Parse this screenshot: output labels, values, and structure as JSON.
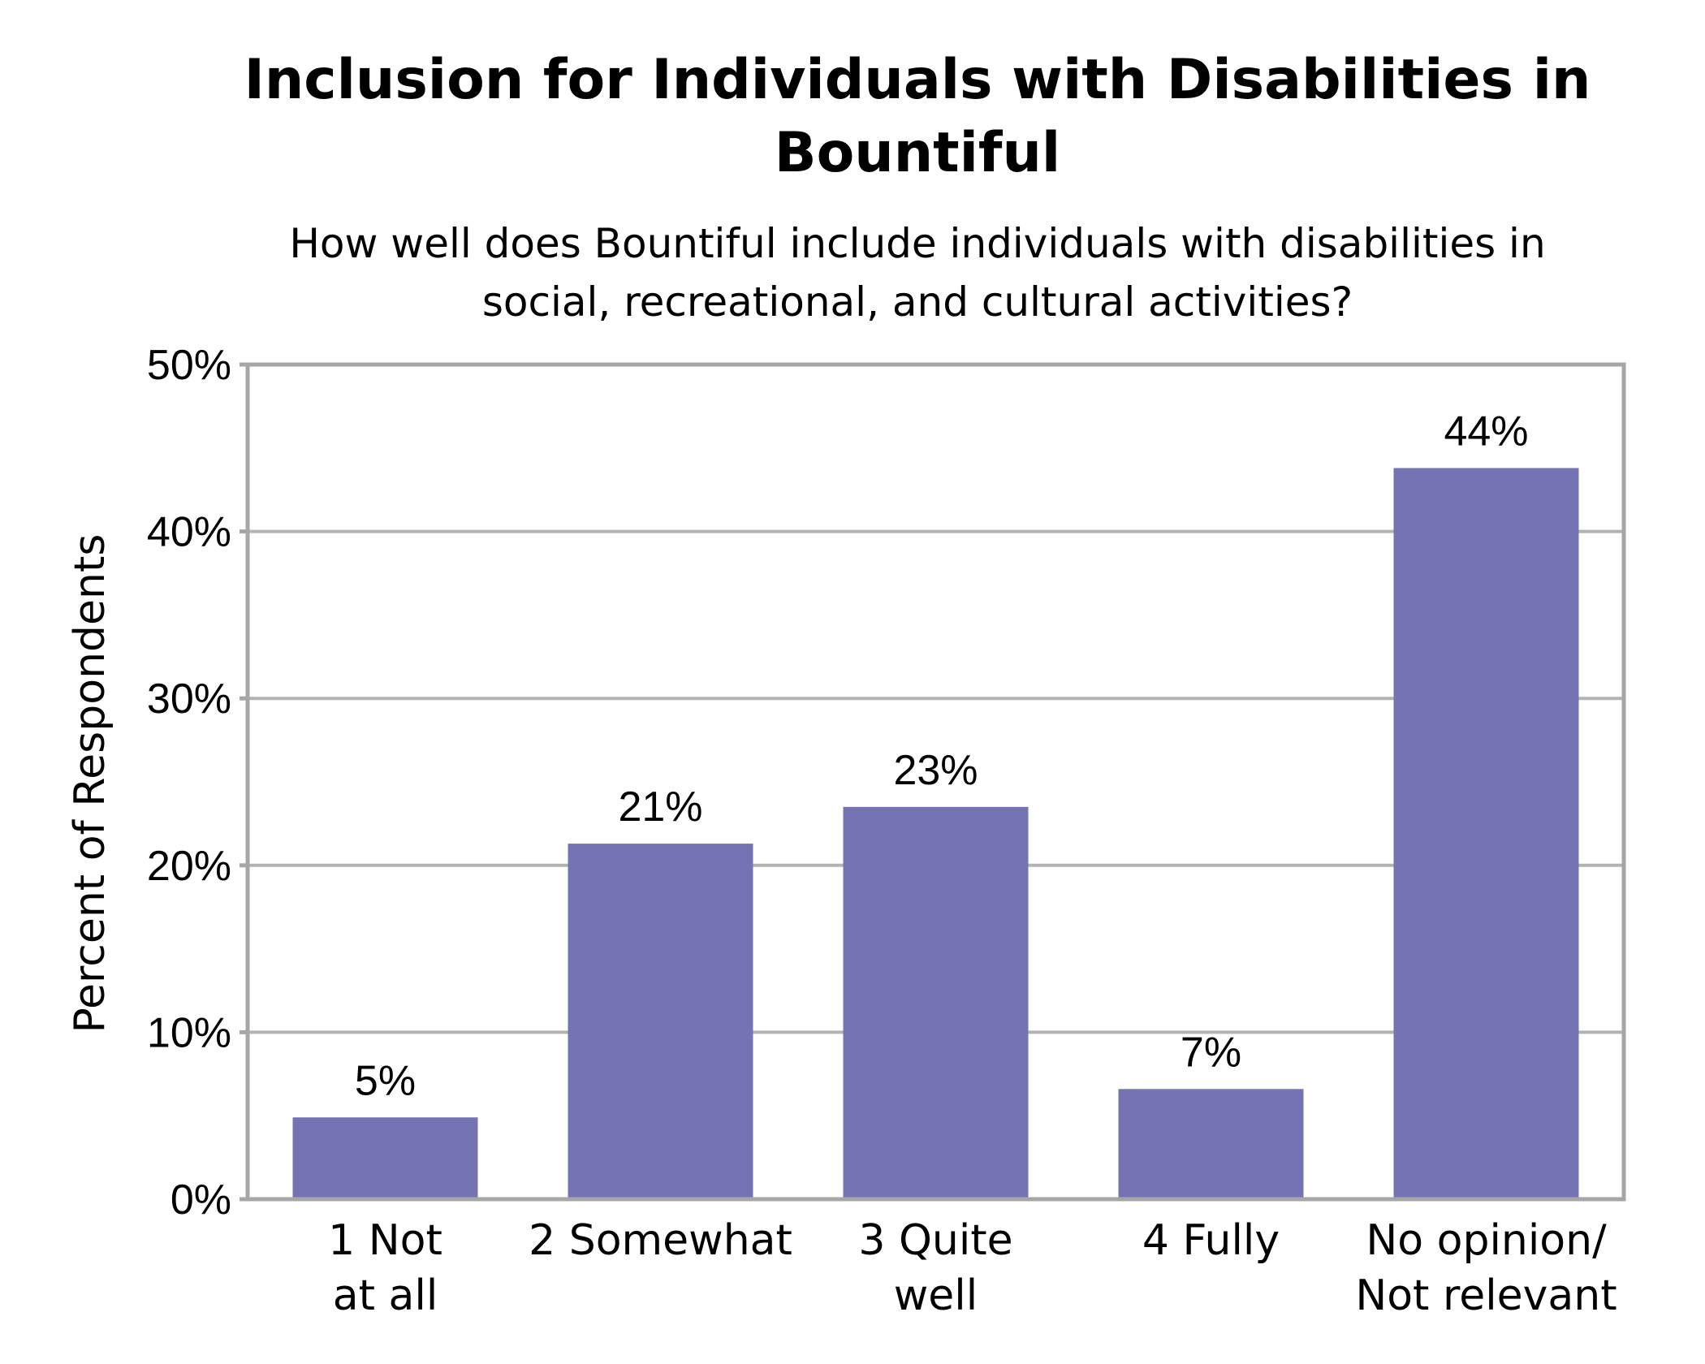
{
  "chart_data": {
    "type": "bar",
    "title_lines": [
      "Inclusion for Individuals with Disabilities in",
      "Bountiful"
    ],
    "subtitle_lines": [
      "How well does Bountiful include individuals with disabilities in",
      "social, recreational, and cultural activities?"
    ],
    "ylabel": "Percent of Respondents",
    "xlabel": "",
    "categories": [
      [
        "1 Not",
        "at all"
      ],
      [
        "2 Somewhat"
      ],
      [
        "3 Quite",
        "well"
      ],
      [
        "4 Fully"
      ],
      [
        "No opinion/",
        "Not relevant"
      ]
    ],
    "values": [
      4.9,
      21.3,
      23.5,
      6.6,
      43.8
    ],
    "data_labels": [
      "5%",
      "21%",
      "23%",
      "7%",
      "44%"
    ],
    "yticks": [
      0,
      10,
      20,
      30,
      40,
      50
    ],
    "ytick_labels": [
      "0%",
      "10%",
      "20%",
      "30%",
      "40%",
      "50%"
    ],
    "ylim": [
      0,
      50
    ],
    "grid": true,
    "bar_color": "#7673b3",
    "grid_color": "#b3b3b3",
    "axis_color": "#a6a6a6"
  }
}
